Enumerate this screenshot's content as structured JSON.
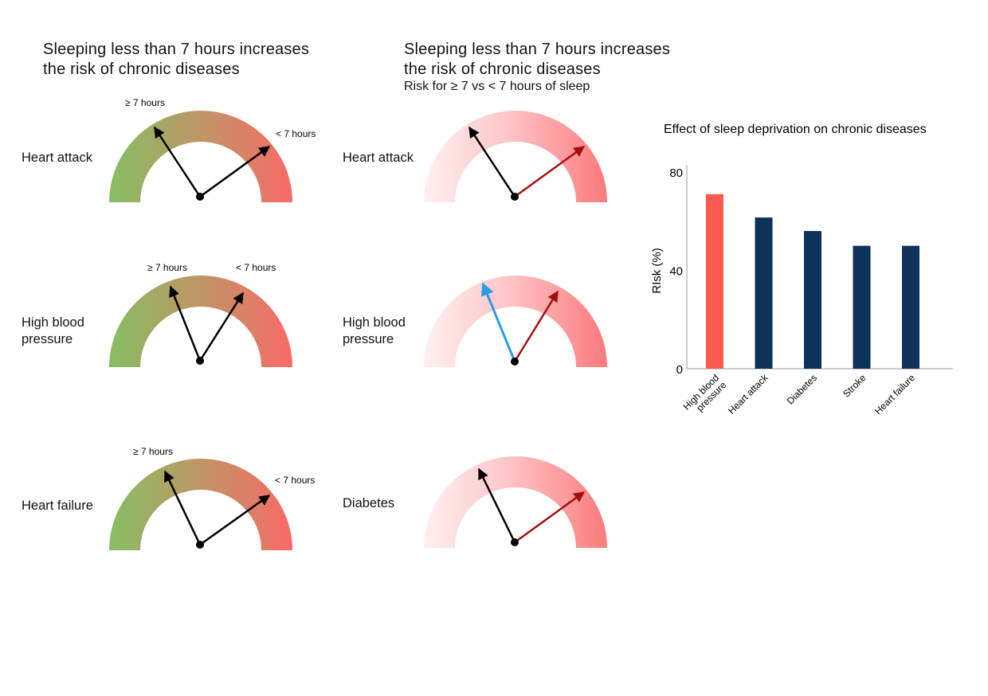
{
  "left_panel": {
    "title_line1": "Sleeping less than 7 hours increases",
    "title_line2": "the risk of chronic diseases",
    "gauges": [
      {
        "label_lines": [
          "Heart attack"
        ],
        "needle_low_label": "≥ 7 hours",
        "needle_high_label": "< 7 hours"
      },
      {
        "label_lines": [
          "High blood",
          "pressure"
        ],
        "needle_low_label": "≥ 7 hours",
        "needle_high_label": "< 7 hours"
      },
      {
        "label_lines": [
          "Heart failure"
        ],
        "needle_low_label": "≥ 7 hours",
        "needle_high_label": "< 7 hours"
      }
    ]
  },
  "middle_panel": {
    "title_line1": "Sleeping less than 7 hours increases",
    "title_line2": "the risk of chronic diseases",
    "subtitle": "Risk for ≥ 7  vs < 7 hours of sleep",
    "gauges": [
      {
        "label_lines": [
          "Heart attack"
        ]
      },
      {
        "label_lines": [
          "High blood",
          "pressure"
        ]
      },
      {
        "label_lines": [
          "Diabetes"
        ]
      }
    ]
  },
  "colors": {
    "gauge_green": "#86bf63",
    "gauge_red": "#f96a68",
    "gauge_pink_light": "#fff0f0",
    "gauge_pink": "#fa7a7c",
    "needle_black": "#000000",
    "needle_darkred": "#a50f0f",
    "needle_blue": "#2a9de8",
    "bar_highlight": "#fa5a52",
    "bar_default": "#0e325a",
    "axis": "#999999"
  },
  "chart_data": [
    {
      "type": "bar",
      "title": "Effect of sleep deprivation on chronic diseases",
      "xlabel": "",
      "ylabel": "RIsk (%)",
      "ylim": [
        0,
        80
      ],
      "yticks": [
        0,
        40,
        80
      ],
      "grid": false,
      "legend": "none",
      "categories": [
        "High blood pressure",
        "Heart attack",
        "Diabetes",
        "Stroke",
        "Heart failure"
      ],
      "category_label_lines": [
        [
          "High blood",
          "pressure"
        ],
        [
          "Heart attack"
        ],
        [
          "Diabetes"
        ],
        [
          "Stroke"
        ],
        [
          "Heart failure"
        ]
      ],
      "values": [
        71,
        61.5,
        56,
        50,
        50
      ],
      "highlight_index": 0
    }
  ]
}
